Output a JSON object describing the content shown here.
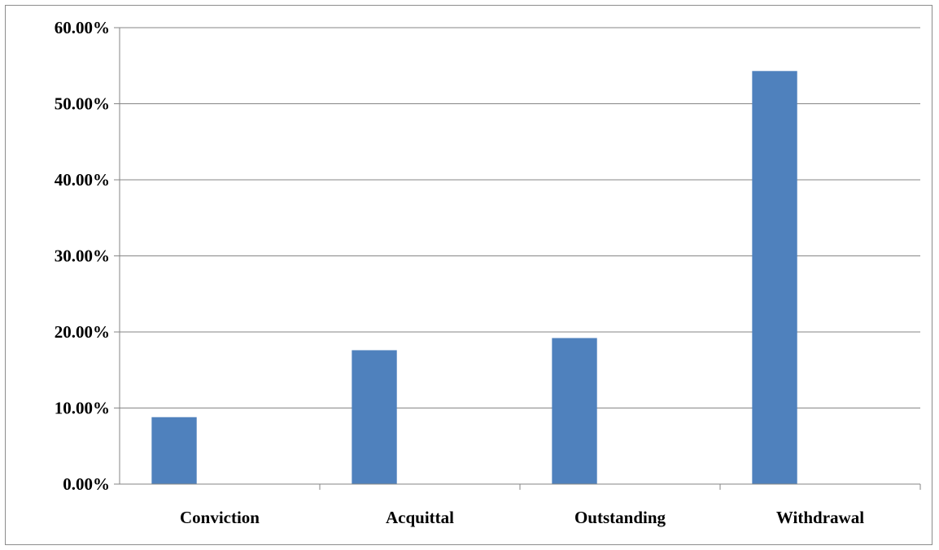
{
  "chart_data": {
    "type": "bar",
    "title": "",
    "xlabel": "",
    "ylabel": "",
    "categories": [
      "Conviction",
      "Acquittal",
      "Outstanding",
      "Withdrawal"
    ],
    "values": [
      8.8,
      17.6,
      19.2,
      54.3
    ],
    "ylim": [
      0,
      60
    ],
    "yticks": [
      0,
      10,
      20,
      30,
      40,
      50,
      60
    ],
    "ytick_labels": [
      "0.00%",
      "10.00%",
      "20.00%",
      "30.00%",
      "40.00%",
      "50.00%",
      "60.00%"
    ],
    "grid": true,
    "legend": "none",
    "bar_color": "#4f81bd"
  }
}
